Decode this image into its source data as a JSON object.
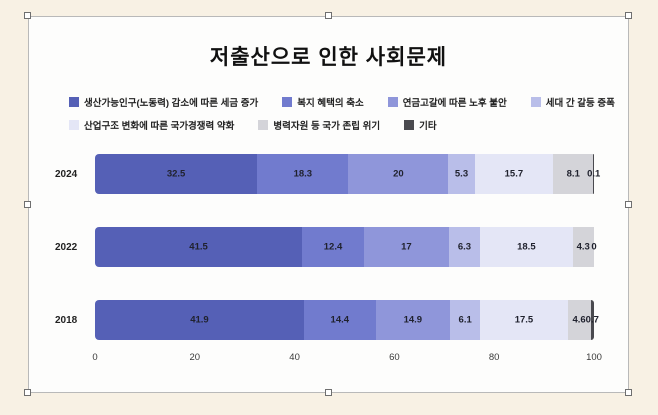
{
  "chart_data": {
    "type": "bar",
    "orientation": "horizontal",
    "stacked": true,
    "title": "저출산으로 인한 사회문제",
    "categories": [
      "2024",
      "2022",
      "2018"
    ],
    "series": [
      {
        "name": "생산가능인구(노동력) 감소에 따른 세금 증가",
        "color": "#5560b6",
        "values": [
          32.5,
          41.5,
          41.9
        ]
      },
      {
        "name": "복지 혜택의 축소",
        "color": "#717bce",
        "values": [
          18.3,
          12.4,
          14.4
        ]
      },
      {
        "name": "연금고갈에 따른 노후 불안",
        "color": "#8f96da",
        "values": [
          20,
          17,
          14.9
        ]
      },
      {
        "name": "세대 간 갈등 증폭",
        "color": "#b9bee9",
        "values": [
          5.3,
          6.3,
          6.1
        ]
      },
      {
        "name": "산업구조 변화에 따른 국가경쟁력 약화",
        "color": "#e4e6f6",
        "values": [
          15.7,
          18.5,
          17.5
        ]
      },
      {
        "name": "병력자원 등 국가 존립 위기",
        "color": "#d4d4d9",
        "values": [
          8.1,
          4.3,
          4.6
        ]
      },
      {
        "name": "기타",
        "color": "#4a4a4f",
        "values": [
          0.1,
          0,
          0.7
        ]
      }
    ],
    "xlim": [
      0,
      100
    ],
    "x_ticks": [
      0,
      20,
      40,
      60,
      80,
      100
    ],
    "legend_position": "top",
    "legend_rows": [
      4,
      3
    ],
    "grid": "off"
  }
}
